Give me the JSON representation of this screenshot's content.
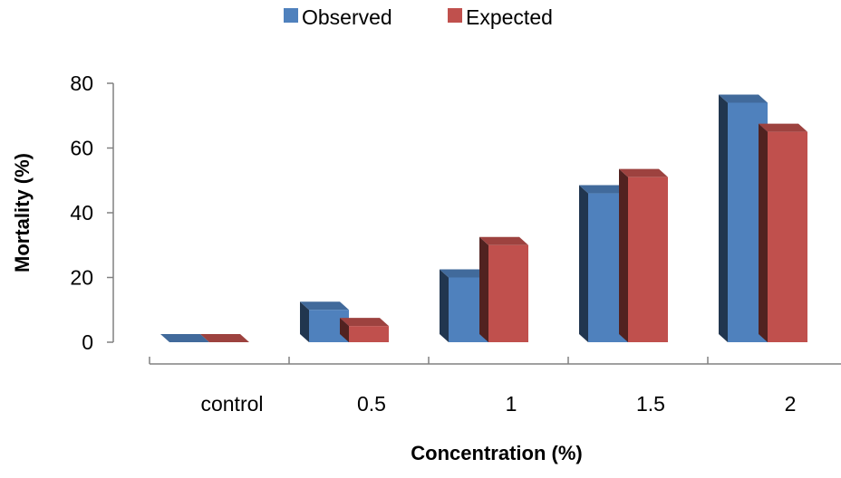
{
  "chart_data": {
    "type": "bar",
    "categories": [
      "control",
      "0.5",
      "1",
      "1.5",
      "2"
    ],
    "series": [
      {
        "name": "Observed",
        "values": [
          0,
          10,
          20,
          46,
          74
        ],
        "color": "#4F81BD"
      },
      {
        "name": "Expected",
        "values": [
          0,
          5,
          30,
          51,
          65
        ],
        "color": "#C0504D"
      }
    ],
    "title": "",
    "xlabel": "Concentration (%)",
    "ylabel": "Mortality (%)",
    "ylim": [
      0,
      80
    ],
    "yticks": [
      "0",
      "20",
      "40",
      "60",
      "80"
    ],
    "style": "3d-clustered-column",
    "grid": false,
    "legend_position": "top"
  }
}
